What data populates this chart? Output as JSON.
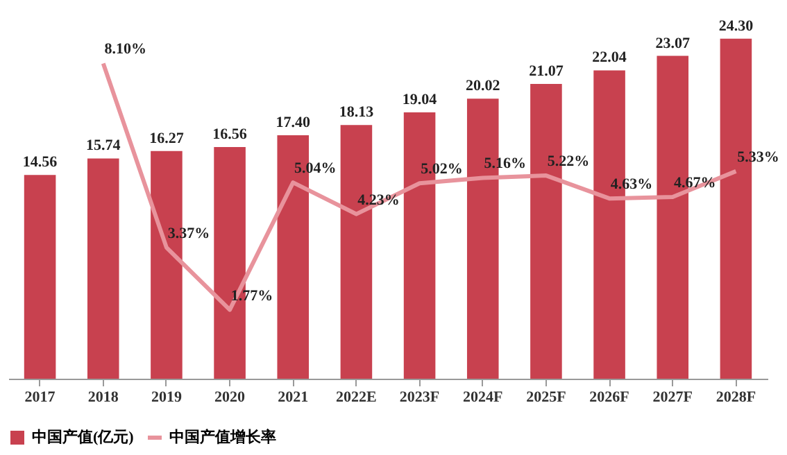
{
  "chart_data": {
    "type": "bar",
    "categories": [
      "2017",
      "2018",
      "2019",
      "2020",
      "2021",
      "2022E",
      "2023F",
      "2024F",
      "2025F",
      "2026F",
      "2027F",
      "2028F"
    ],
    "series": [
      {
        "name": "中国产值(亿元)",
        "color": "#c8414f",
        "values": [
          14.56,
          15.74,
          16.27,
          16.56,
          17.4,
          18.13,
          19.04,
          20.02,
          21.07,
          22.04,
          23.07,
          24.3
        ],
        "value_labels": [
          "14.56",
          "15.74",
          "16.27",
          "16.56",
          "17.40",
          "18.13",
          "19.04",
          "20.02",
          "21.07",
          "22.04",
          "23.07",
          "24.30"
        ]
      },
      {
        "name": "中国产值增长率",
        "type": "line",
        "axis": "y2",
        "color": "#e8939c",
        "values": [
          null,
          8.1,
          3.37,
          1.77,
          5.04,
          4.23,
          5.02,
          5.16,
          5.22,
          4.63,
          4.67,
          5.33
        ],
        "value_labels": [
          null,
          "8.10%",
          "3.37%",
          "1.77%",
          "5.04%",
          "4.23%",
          "5.02%",
          "5.16%",
          "5.22%",
          "4.63%",
          "4.67%",
          "5.33%"
        ]
      }
    ],
    "legend": "bottom",
    "grid": false,
    "tick_labels": "x"
  }
}
